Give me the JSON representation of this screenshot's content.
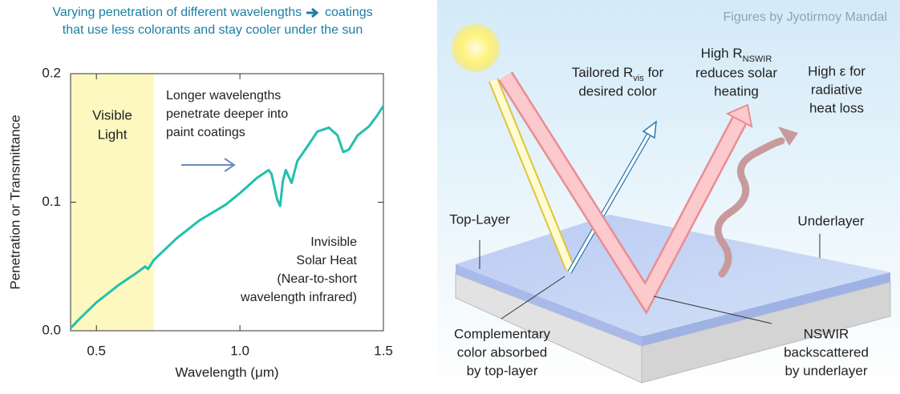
{
  "chart_data": {
    "type": "line",
    "title_start": "Varying penetration of different wavelengths",
    "title_end": "coatings",
    "subtitle": "that use less colorants and stay cooler under the sun",
    "x_label": "Wavelength (μm)",
    "y_label": "Penetration or Transmittance",
    "x": [
      0.41,
      0.44,
      0.5,
      0.58,
      0.64,
      0.67,
      0.68,
      0.7,
      0.78,
      0.86,
      0.95,
      1.0,
      1.06,
      1.1,
      1.11,
      1.13,
      1.14,
      1.15,
      1.16,
      1.18,
      1.2,
      1.24,
      1.27,
      1.31,
      1.34,
      1.36,
      1.38,
      1.41,
      1.45,
      1.48,
      1.5
    ],
    "series": [
      {
        "name": "Penetration",
        "color": "#22c0ae",
        "values": [
          0.002,
          0.009,
          0.022,
          0.036,
          0.045,
          0.05,
          0.048,
          0.055,
          0.072,
          0.086,
          0.098,
          0.107,
          0.119,
          0.125,
          0.122,
          0.102,
          0.097,
          0.117,
          0.125,
          0.115,
          0.132,
          0.145,
          0.155,
          0.158,
          0.152,
          0.139,
          0.141,
          0.152,
          0.159,
          0.168,
          0.175
        ]
      }
    ],
    "xlim": [
      0.41,
      1.5
    ],
    "ylim": [
      0,
      0.2
    ],
    "xticks": [
      0.5,
      {
        "value": 1,
        "label": "1.0"
      },
      1.5
    ],
    "yticks": [
      {
        "value": 0,
        "label": "0.0"
      },
      0.1,
      0.2
    ],
    "highlight_span": [
      0.41,
      0.7
    ],
    "highlight_color": "#fdf8bf",
    "annotations": [
      {
        "lines": [
          "Visible",
          "Light"
        ]
      },
      {
        "lines": [
          "Longer wavelengths",
          "penetrate deeper into",
          "paint coatings"
        ]
      },
      {
        "lines": [
          "Invisible",
          "Solar Heat",
          "(Near-to-short",
          "wavelength infrared)"
        ]
      }
    ]
  },
  "diagram": {
    "credit": "Figures by Jyotirmoy Mandal",
    "rvis": {
      "main": "Tailored R",
      "sub": "vis",
      "tail": " for",
      "line2": "desired color"
    },
    "rnswir": {
      "main": "High R",
      "sub": "NSWIR",
      "line2": "reduces solar",
      "line3": "heating"
    },
    "emissivity": [
      "High ε for",
      "radiative",
      "heat loss"
    ],
    "top_layer": "Top-Layer",
    "underlayer": "Underlayer",
    "absorbed": [
      "Complementary",
      "color absorbed",
      "by top-layer"
    ],
    "backscattered": [
      "NSWIR",
      "backscattered",
      "by underlayer"
    ]
  }
}
